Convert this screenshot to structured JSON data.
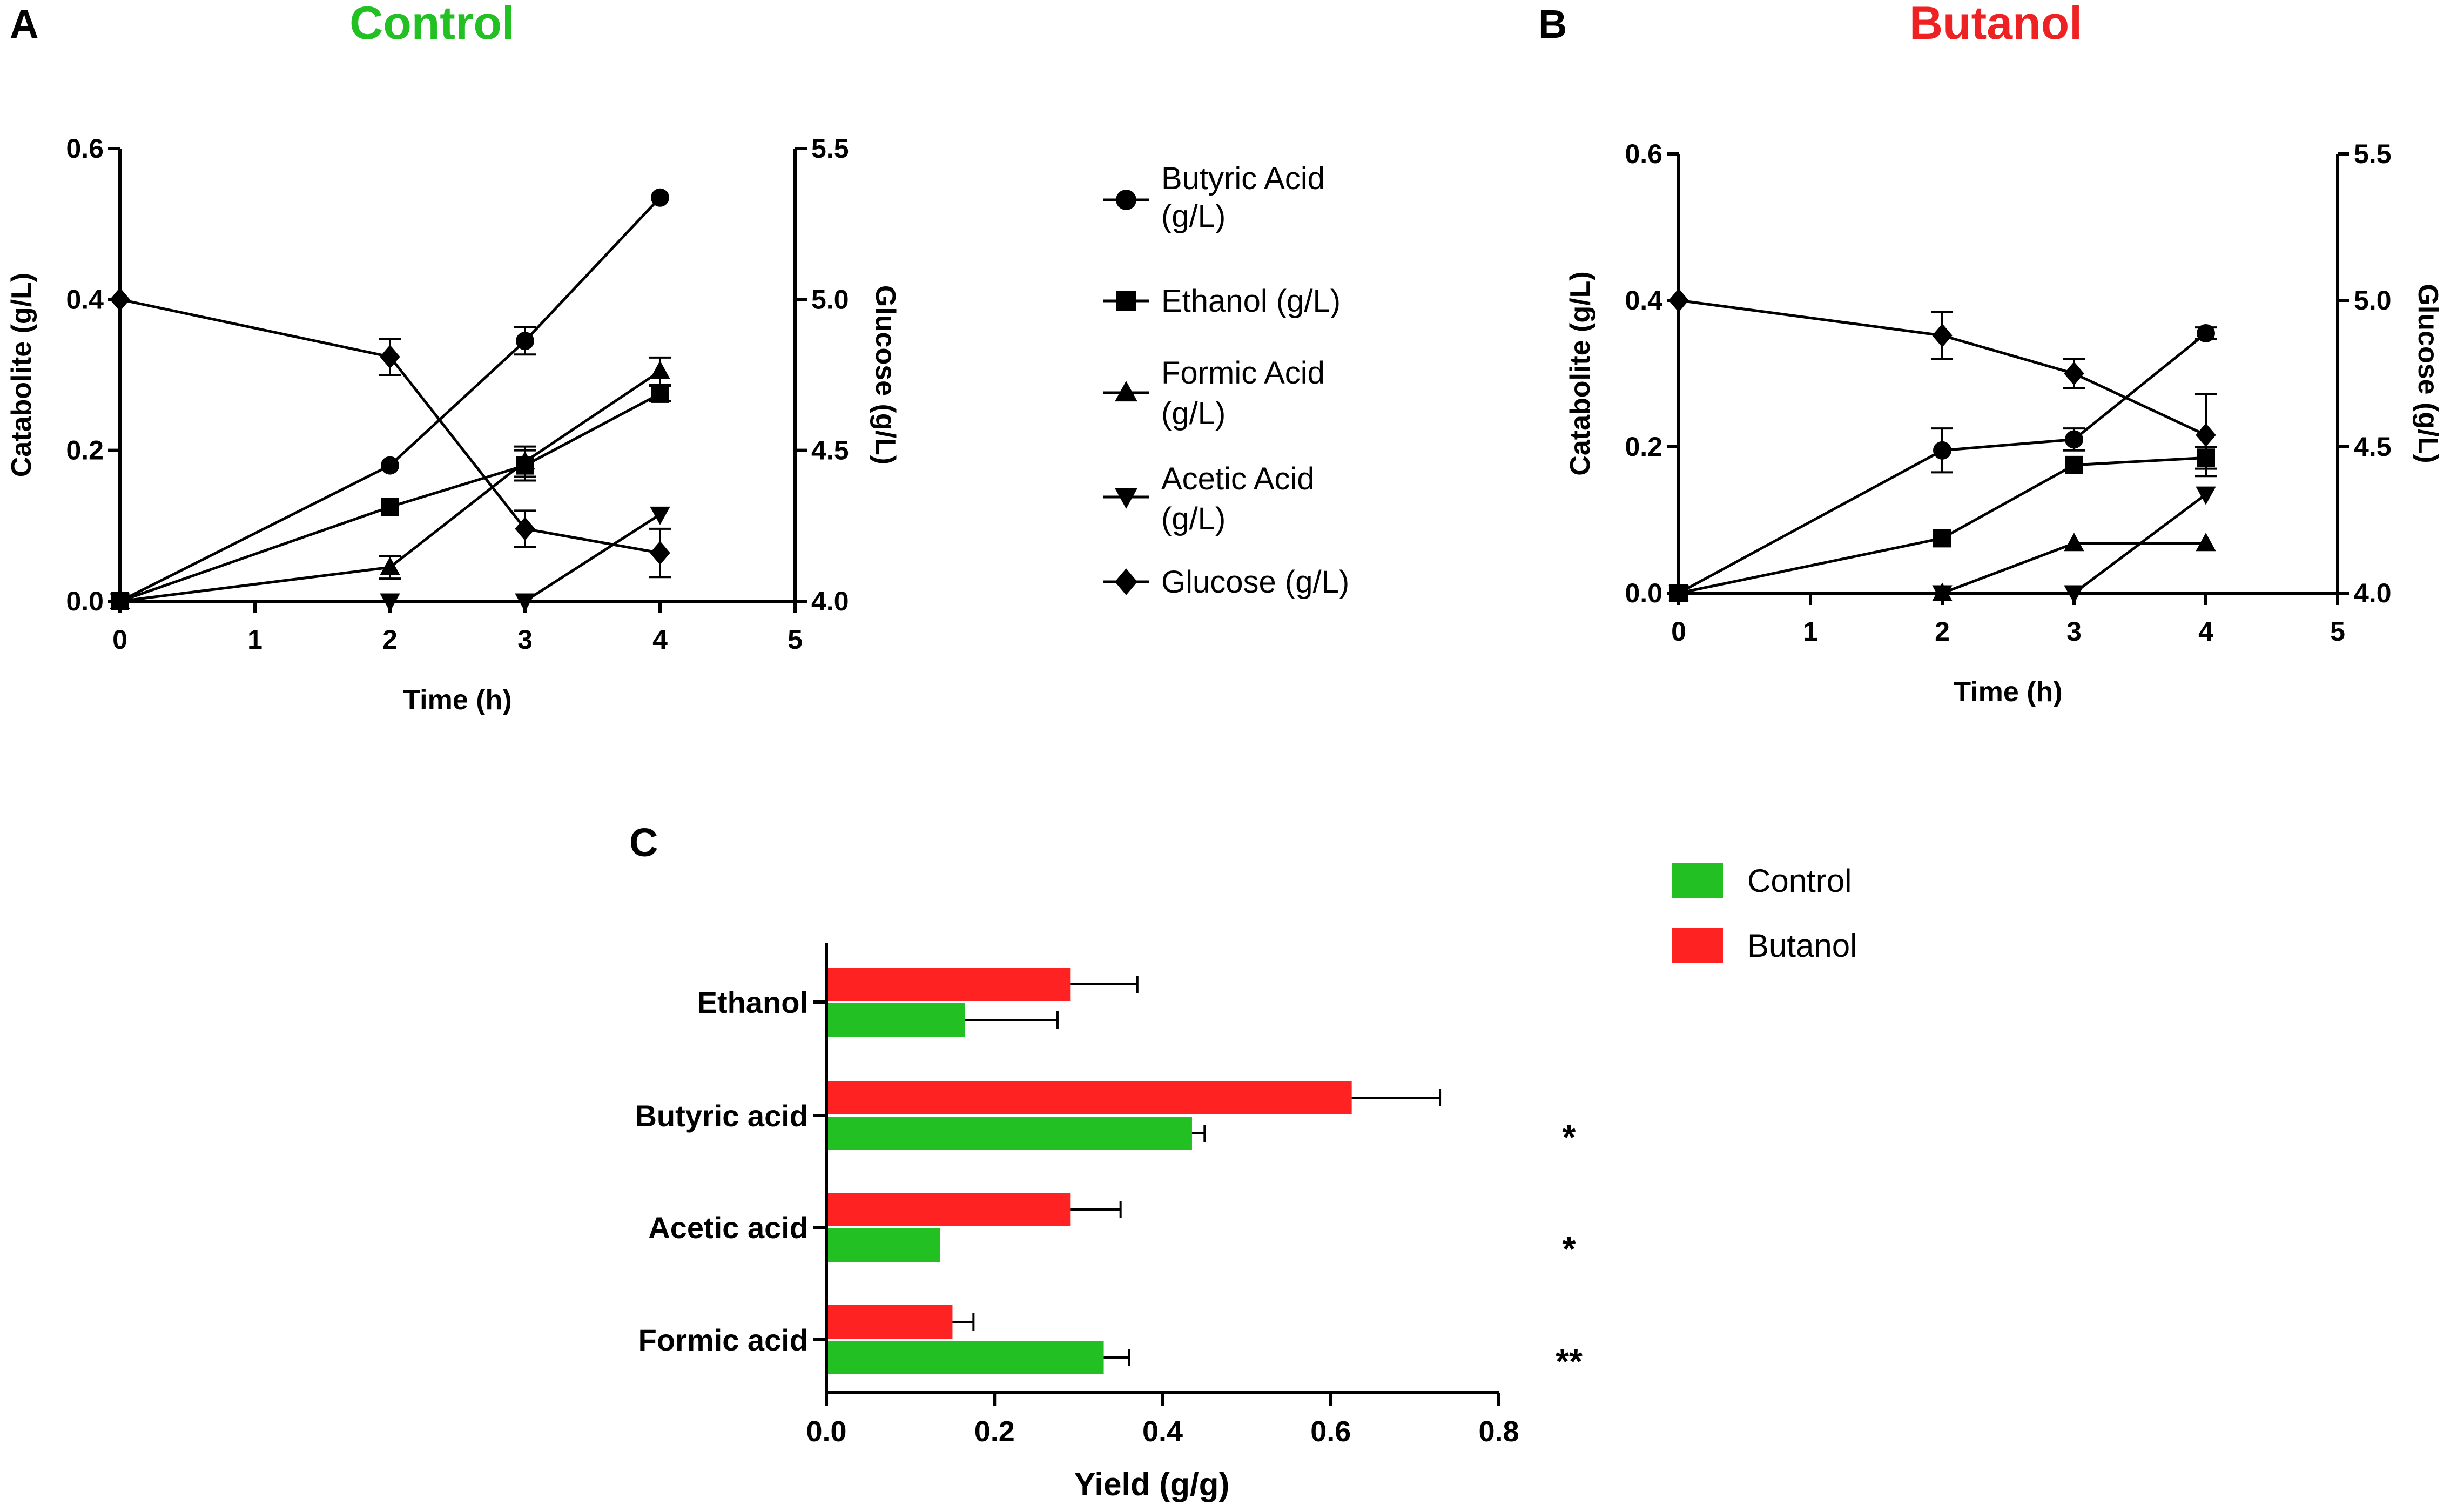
{
  "panels": {
    "a": {
      "letter": "A",
      "title": "Control",
      "title_color": "#22c022"
    },
    "b": {
      "letter": "B",
      "title": "Butanol",
      "title_color": "#ee2222"
    },
    "c": {
      "letter": "C"
    }
  },
  "line_legend": [
    {
      "marker": "circle",
      "label_lines": [
        "Butyric Acid",
        "(g/L)"
      ]
    },
    {
      "marker": "square",
      "label_lines": [
        "Ethanol (g/L)"
      ]
    },
    {
      "marker": "triangle-up",
      "label_lines": [
        "Formic Acid",
        "(g/L)"
      ]
    },
    {
      "marker": "triangle-down",
      "label_lines": [
        "Acetic Acid",
        "(g/L)"
      ]
    },
    {
      "marker": "diamond",
      "label_lines": [
        "Glucose (g/L)"
      ]
    }
  ],
  "bar_legend": [
    {
      "name": "Control",
      "color": "#22c022"
    },
    {
      "name": "Butanol",
      "color": "#ff2222"
    }
  ],
  "chart_data": [
    {
      "id": "A",
      "type": "line",
      "title": "Control",
      "xlabel": "Time (h)",
      "ylabel": "Catabolite (g/L)",
      "y2label": "Glucose (g/L)",
      "xlim": [
        0,
        5
      ],
      "ylim": [
        0,
        0.6
      ],
      "y2lim": [
        4.0,
        5.5
      ],
      "xticks": [
        "0",
        "1",
        "2",
        "3",
        "4",
        "5"
      ],
      "yticks": [
        "0.0",
        "0.2",
        "0.4",
        "0.6"
      ],
      "y2ticks": [
        "4.0",
        "4.5",
        "5.0",
        "5.5"
      ],
      "series": [
        {
          "name": "Butyric Acid (g/L)",
          "marker": "circle",
          "axis": "left",
          "x": [
            0,
            2,
            3,
            4
          ],
          "y": [
            0,
            0.18,
            0.345,
            0.535
          ],
          "err": [
            0,
            0,
            0.018,
            0
          ]
        },
        {
          "name": "Ethanol (g/L)",
          "marker": "square",
          "axis": "left",
          "x": [
            0,
            2,
            3,
            4
          ],
          "y": [
            0,
            0.125,
            0.18,
            0.275
          ],
          "err": [
            0,
            0,
            0.02,
            0.01
          ]
        },
        {
          "name": "Formic Acid (g/L)",
          "marker": "triangle-up",
          "axis": "left",
          "x": [
            0,
            2,
            3,
            4
          ],
          "y": [
            0,
            0.045,
            0.185,
            0.305
          ],
          "err": [
            0,
            0.015,
            0.02,
            0.018
          ]
        },
        {
          "name": "Acetic Acid (g/L)",
          "marker": "triangle-down",
          "axis": "left",
          "x": [
            0,
            2,
            3,
            4
          ],
          "y": [
            0,
            0,
            0,
            0.115
          ],
          "err": [
            0,
            0,
            0,
            0
          ]
        },
        {
          "name": "Glucose (g/L)",
          "marker": "diamond",
          "axis": "right",
          "x": [
            0,
            2,
            3,
            4
          ],
          "y": [
            5.0,
            4.81,
            4.24,
            4.16
          ],
          "err": [
            0,
            0.06,
            0.06,
            0.08
          ]
        }
      ]
    },
    {
      "id": "B",
      "type": "line",
      "title": "Butanol",
      "xlabel": "Time (h)",
      "ylabel": "Catabolite (g/L)",
      "y2label": "Glucose (g/L)",
      "xlim": [
        0,
        5
      ],
      "ylim": [
        0,
        0.6
      ],
      "y2lim": [
        4.0,
        5.5
      ],
      "xticks": [
        "0",
        "1",
        "2",
        "3",
        "4",
        "5"
      ],
      "yticks": [
        "0.0",
        "0.2",
        "0.4",
        "0.6"
      ],
      "y2ticks": [
        "4.0",
        "4.5",
        "5.0",
        "5.5"
      ],
      "series": [
        {
          "name": "Butyric Acid (g/L)",
          "marker": "circle",
          "axis": "left",
          "x": [
            0,
            2,
            3,
            4
          ],
          "y": [
            0,
            0.195,
            0.21,
            0.355
          ],
          "err": [
            0,
            0.03,
            0.015,
            0.008
          ]
        },
        {
          "name": "Ethanol (g/L)",
          "marker": "square",
          "axis": "left",
          "x": [
            0,
            2,
            3,
            4
          ],
          "y": [
            0,
            0.075,
            0.175,
            0.185
          ],
          "err": [
            0,
            0,
            0,
            0.015
          ]
        },
        {
          "name": "Formic Acid (g/L)",
          "marker": "triangle-up",
          "axis": "left",
          "x": [
            0,
            2,
            3,
            4
          ],
          "y": [
            0,
            0,
            0.068,
            0.068
          ],
          "err": [
            0,
            0,
            0,
            0
          ]
        },
        {
          "name": "Acetic Acid (g/L)",
          "marker": "triangle-down",
          "axis": "left",
          "x": [
            0,
            2,
            3,
            4
          ],
          "y": [
            0,
            0,
            0,
            0.135
          ],
          "err": [
            0,
            0,
            0,
            0
          ]
        },
        {
          "name": "Glucose (g/L)",
          "marker": "diamond",
          "axis": "right",
          "x": [
            0,
            2,
            3,
            4
          ],
          "y": [
            5.0,
            4.88,
            4.75,
            4.54
          ],
          "err": [
            0,
            0.08,
            0.05,
            0.14
          ]
        }
      ]
    },
    {
      "id": "C",
      "type": "bar",
      "orientation": "horizontal",
      "xlabel": "Yield (g/g)",
      "xlim": [
        0,
        0.8
      ],
      "xticks": [
        "0.0",
        "0.2",
        "0.4",
        "0.6",
        "0.8"
      ],
      "categories": [
        "Ethanol",
        "Butyric acid",
        "Acetic acid",
        "Formic acid"
      ],
      "series": [
        {
          "name": "Butanol",
          "color": "#ff2222",
          "values": [
            0.29,
            0.625,
            0.29,
            0.15
          ],
          "err": [
            0.08,
            0.105,
            0.06,
            0.025
          ]
        },
        {
          "name": "Control",
          "color": "#22c022",
          "values": [
            0.165,
            0.435,
            0.135,
            0.33
          ],
          "err": [
            0.11,
            0.015,
            0,
            0.03
          ]
        }
      ],
      "significance": [
        "",
        "*",
        "*",
        "**"
      ]
    }
  ]
}
